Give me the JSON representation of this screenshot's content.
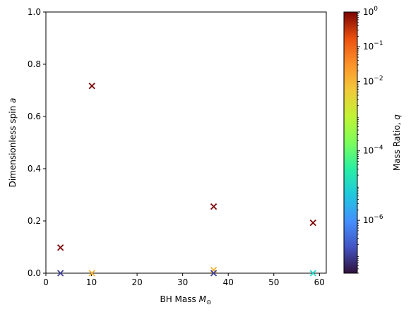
{
  "chart_data": {
    "type": "scatter",
    "xlabel_text": "BH Mass ",
    "xlabel_math": "M",
    "xlabel_sub": "⊙",
    "ylabel_text": "Dimensionless spin ",
    "ylabel_math": "a",
    "xlim": [
      0,
      61.5
    ],
    "ylim": [
      0,
      1.0
    ],
    "xticks": [
      0,
      10,
      20,
      30,
      40,
      50,
      60
    ],
    "yticks": [
      0.0,
      0.2,
      0.4,
      0.6,
      0.8,
      1.0
    ],
    "xtick_labels": [
      "0",
      "10",
      "20",
      "30",
      "40",
      "50",
      "60"
    ],
    "ytick_labels": [
      "0.0",
      "0.2",
      "0.4",
      "0.6",
      "0.8",
      "1.0"
    ],
    "marker": "x",
    "grid": false,
    "points": [
      {
        "x": 3.2,
        "y": 0.098,
        "q": 1.0
      },
      {
        "x": 10.1,
        "y": 0.717,
        "q": 1.0
      },
      {
        "x": 36.8,
        "y": 0.255,
        "q": 1.0
      },
      {
        "x": 58.6,
        "y": 0.193,
        "q": 1.0
      },
      {
        "x": 3.2,
        "y": 0.0,
        "q": 1e-07
      },
      {
        "x": 10.1,
        "y": 0.0,
        "q": 0.012
      },
      {
        "x": 36.8,
        "y": 0.012,
        "q": 0.01
      },
      {
        "x": 36.8,
        "y": 0.0,
        "q": 1e-07
      },
      {
        "x": 58.6,
        "y": 0.0,
        "q": 1e-05
      }
    ],
    "colorbar": {
      "label_text": "Mass Ratio, ",
      "label_math": "q",
      "scale": "log",
      "colormap": "turbo",
      "range": [
        3e-08,
        1.0
      ],
      "ticks": [
        {
          "value": 1e-06,
          "base": "10",
          "exp": "−6"
        },
        {
          "value": 0.0001,
          "base": "10",
          "exp": "−4"
        },
        {
          "value": 0.01,
          "base": "10",
          "exp": "−2"
        },
        {
          "value": 0.1,
          "base": "10",
          "exp": "−1"
        },
        {
          "value": 1,
          "base": "10",
          "exp": "0"
        }
      ]
    }
  }
}
